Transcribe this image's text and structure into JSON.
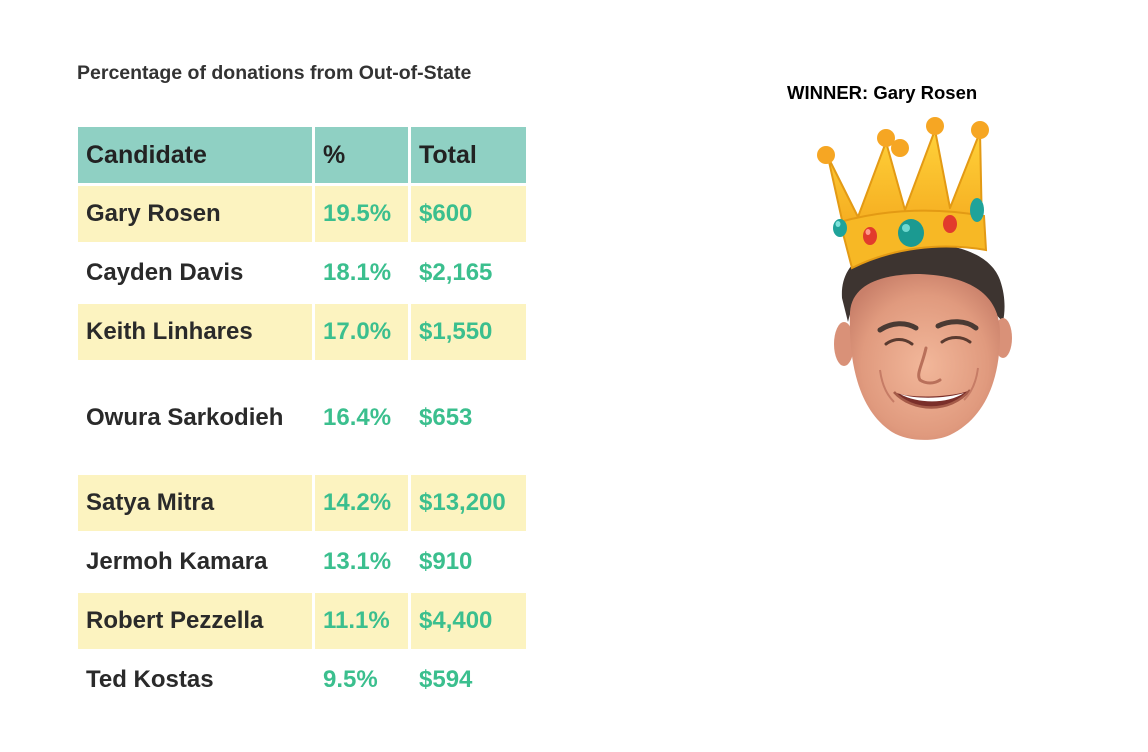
{
  "title": "Percentage of donations from Out-of-State",
  "winner_label": "WINNER: Gary Rosen",
  "colors": {
    "header_bg": "#8fd0c3",
    "shaded_row": "#fcf3c0",
    "value_text": "#3bbf8e",
    "crown_gold": "#f4b321"
  },
  "icons": [
    "crown-icon",
    "winner-photo"
  ],
  "chart_data": {
    "type": "table",
    "columns": [
      "Candidate",
      "%",
      "Total"
    ],
    "rows": [
      {
        "candidate": "Gary Rosen",
        "percent": "19.5%",
        "total": "$600",
        "shaded": true
      },
      {
        "candidate": "Cayden Davis",
        "percent": "18.1%",
        "total": "$2,165",
        "shaded": false
      },
      {
        "candidate": "Keith Linhares",
        "percent": "17.0%",
        "total": "$1,550",
        "shaded": true
      },
      {
        "candidate": "Owura Sarkodieh",
        "percent": "16.4%",
        "total": "$653",
        "shaded": false
      },
      {
        "candidate": "Satya Mitra",
        "percent": "14.2%",
        "total": "$13,200",
        "shaded": true
      },
      {
        "candidate": "Jermoh Kamara",
        "percent": "13.1%",
        "total": "$910",
        "shaded": false
      },
      {
        "candidate": "Robert Pezzella",
        "percent": "11.1%",
        "total": "$4,400",
        "shaded": true
      },
      {
        "candidate": "Ted Kostas",
        "percent": "9.5%",
        "total": "$594",
        "shaded": false
      }
    ]
  }
}
